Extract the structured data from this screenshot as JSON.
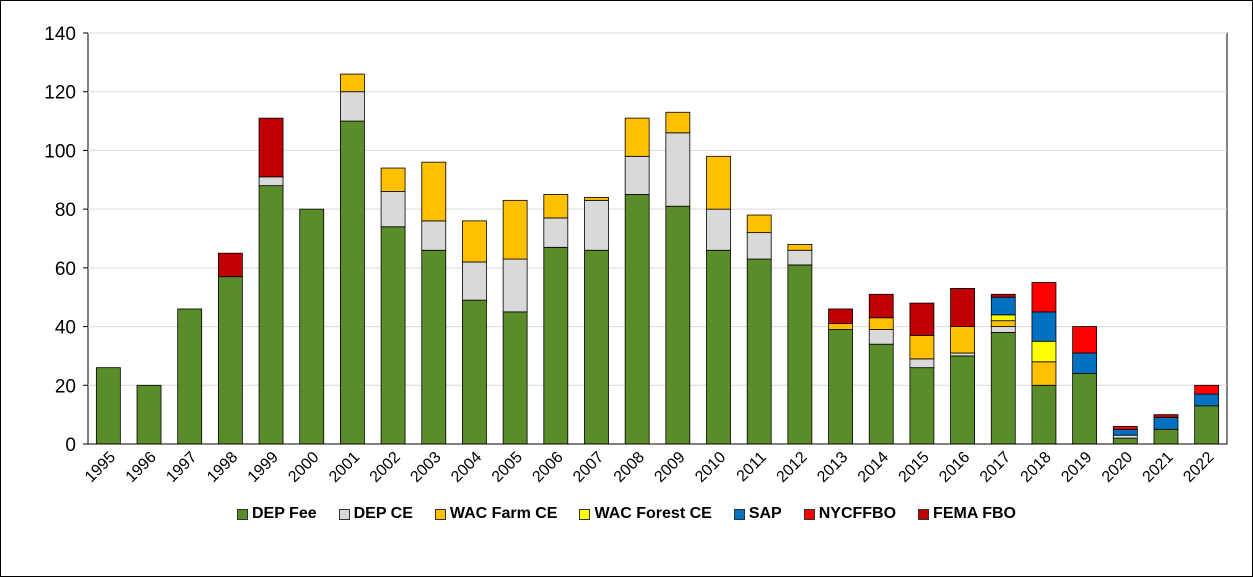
{
  "chart_data": {
    "type": "bar",
    "stacked": true,
    "categories": [
      "1995",
      "1996",
      "1997",
      "1998",
      "1999",
      "2000",
      "2001",
      "2002",
      "2003",
      "2004",
      "2005",
      "2006",
      "2007",
      "2008",
      "2009",
      "2010",
      "2011",
      "2012",
      "2013",
      "2014",
      "2015",
      "2016",
      "2017",
      "2018",
      "2019",
      "2020",
      "2021",
      "2022"
    ],
    "series": [
      {
        "name": "DEP Fee",
        "color": "#5b8c2a",
        "values": [
          26,
          20,
          46,
          57,
          88,
          80,
          110,
          74,
          66,
          49,
          45,
          67,
          66,
          85,
          81,
          66,
          63,
          61,
          39,
          34,
          26,
          30,
          38,
          20,
          24,
          2,
          5,
          13
        ]
      },
      {
        "name": "DEP CE",
        "color": "#d9d9d9",
        "values": [
          0,
          0,
          0,
          0,
          3,
          0,
          10,
          12,
          10,
          13,
          18,
          10,
          17,
          13,
          25,
          14,
          9,
          5,
          0,
          5,
          3,
          1,
          2,
          0,
          0,
          1,
          0,
          0
        ]
      },
      {
        "name": "WAC Farm CE",
        "color": "#ffc000",
        "values": [
          0,
          0,
          0,
          0,
          0,
          0,
          6,
          8,
          20,
          14,
          20,
          8,
          1,
          13,
          7,
          18,
          6,
          2,
          2,
          4,
          8,
          9,
          2,
          8,
          0,
          0,
          0,
          0
        ]
      },
      {
        "name": "WAC Forest CE",
        "color": "#ffff00",
        "values": [
          0,
          0,
          0,
          0,
          0,
          0,
          0,
          0,
          0,
          0,
          0,
          0,
          0,
          0,
          0,
          0,
          0,
          0,
          0,
          0,
          0,
          0,
          2,
          7,
          0,
          0,
          0,
          0
        ]
      },
      {
        "name": "SAP",
        "color": "#0070c0",
        "values": [
          0,
          0,
          0,
          0,
          0,
          0,
          0,
          0,
          0,
          0,
          0,
          0,
          0,
          0,
          0,
          0,
          0,
          0,
          0,
          0,
          0,
          0,
          6,
          10,
          7,
          2,
          4,
          4
        ]
      },
      {
        "name": "NYCFFBO",
        "color": "#ff0000",
        "values": [
          0,
          0,
          0,
          0,
          0,
          0,
          0,
          0,
          0,
          0,
          0,
          0,
          0,
          0,
          0,
          0,
          0,
          0,
          0,
          0,
          0,
          0,
          0,
          10,
          9,
          1,
          0,
          3
        ]
      },
      {
        "name": "FEMA FBO",
        "color": "#c00000",
        "values": [
          0,
          0,
          0,
          8,
          20,
          0,
          0,
          0,
          0,
          0,
          0,
          0,
          0,
          0,
          0,
          0,
          0,
          0,
          5,
          8,
          11,
          13,
          1,
          0,
          0,
          0,
          1,
          0
        ]
      }
    ],
    "ylim": [
      0,
      140
    ],
    "yticks": [
      0,
      20,
      40,
      60,
      80,
      100,
      120,
      140
    ],
    "grid": true,
    "legend": "bottom"
  }
}
